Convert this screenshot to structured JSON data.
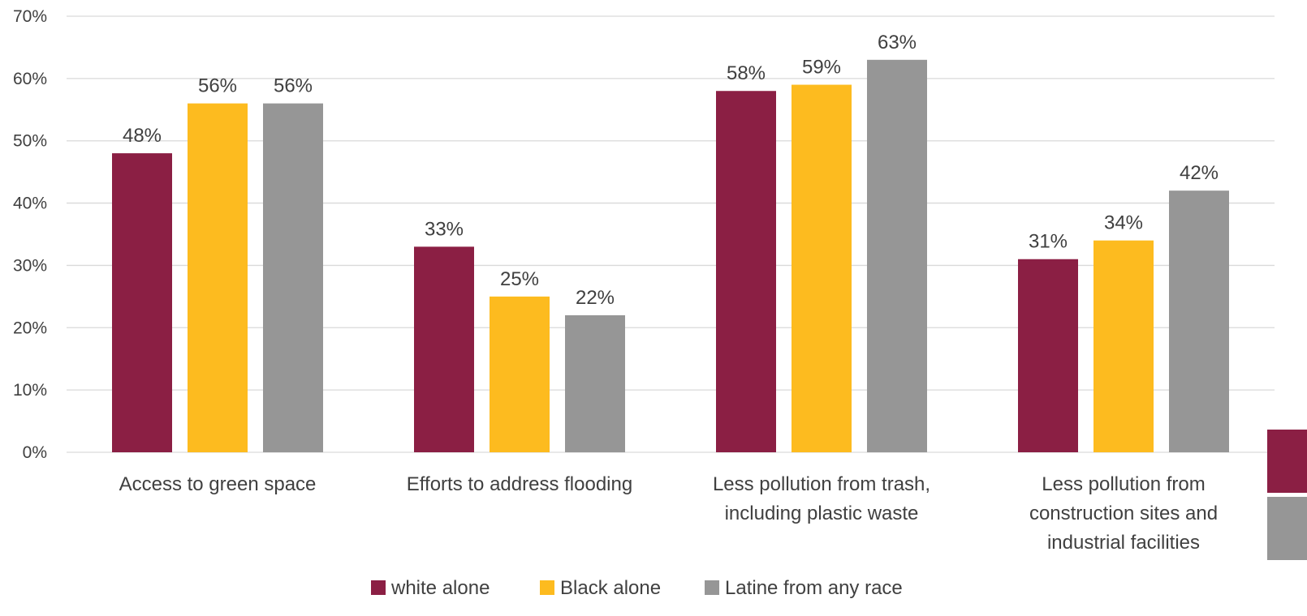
{
  "chart_data": {
    "type": "bar",
    "title": "",
    "xlabel": "",
    "ylabel": "",
    "ylim": [
      0,
      70
    ],
    "yticks": [
      0,
      10,
      20,
      30,
      40,
      50,
      60,
      70
    ],
    "y_tick_suffix": "%",
    "grid": true,
    "legend_position": "bottom",
    "categories": [
      [
        "Access to green space"
      ],
      [
        "Efforts to address flooding"
      ],
      [
        "Less pollution from trash,",
        "including plastic waste"
      ],
      [
        "Less pollution from",
        "construction sites and",
        "industrial facilities"
      ]
    ],
    "series": [
      {
        "name": "white alone",
        "color": "#8b1f44",
        "values": [
          48,
          33,
          58,
          31
        ]
      },
      {
        "name": "Black alone",
        "color": "#fdbb1f",
        "values": [
          56,
          25,
          59,
          34
        ]
      },
      {
        "name": "Latine from any race",
        "color": "#969696",
        "values": [
          56,
          22,
          63,
          42
        ]
      }
    ],
    "data_label_suffix": "%",
    "edge_swatch_colors": [
      "#8b1f44",
      "#969696"
    ]
  }
}
